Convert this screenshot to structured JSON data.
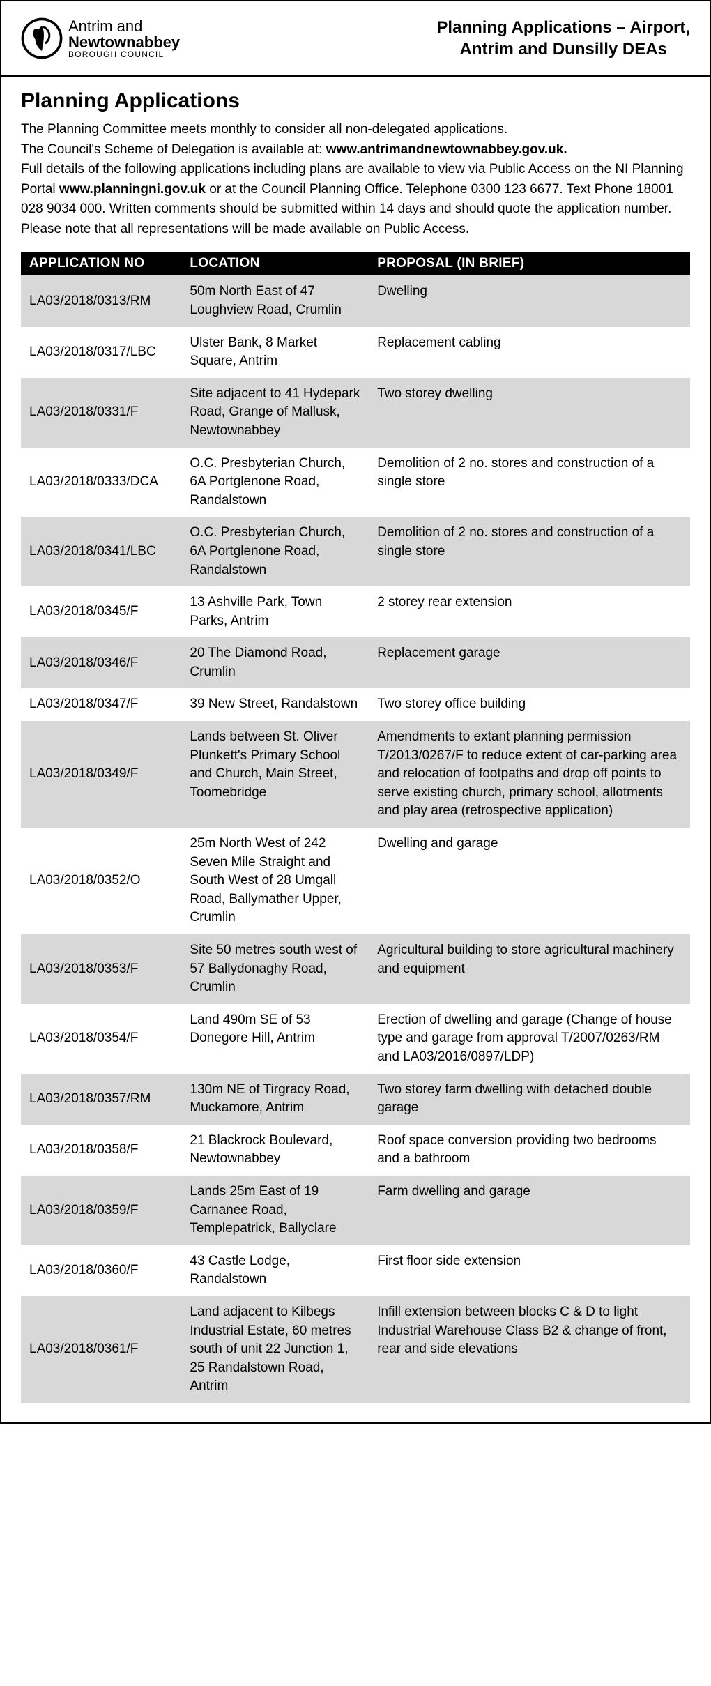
{
  "header": {
    "logo_line1": "Antrim and",
    "logo_line2": "Newtownabbey",
    "logo_line3": "BOROUGH COUNCIL",
    "title_line1": "Planning Applications – Airport,",
    "title_line2": "Antrim and Dunsilly DEAs"
  },
  "section_title": "Planning Applications",
  "intro": {
    "p1": "The Planning Committee meets monthly to consider all non-delegated applications.",
    "p2a": "The Council's Scheme of Delegation is available at: ",
    "p2b_bold": "www.antrimandnewtownabbey.gov.uk.",
    "p3a": "Full details of the following applications including plans are available to view via Public Access on the NI Planning Portal ",
    "p3b_bold": "www.planningni.gov.uk",
    "p3c": " or at the Council Planning Office. Telephone 0300 123 6677. Text Phone 18001 028 9034 000. Written comments should be submitted within 14 days and should quote the application number. Please note that all representations will be made available on Public Access."
  },
  "table": {
    "headers": {
      "appno": "APPLICATION NO",
      "location": "LOCATION",
      "proposal": "PROPOSAL (IN BRIEF)"
    },
    "rows": [
      {
        "appno": "LA03/2018/0313/RM",
        "location": "50m North East of 47 Loughview Road, Crumlin",
        "proposal": "Dwelling"
      },
      {
        "appno": "LA03/2018/0317/LBC",
        "location": "Ulster Bank, 8 Market Square, Antrim",
        "proposal": "Replacement cabling"
      },
      {
        "appno": "LA03/2018/0331/F",
        "location": "Site adjacent to 41 Hydepark Road, Grange of Mallusk, Newtownabbey",
        "proposal": "Two storey dwelling"
      },
      {
        "appno": "LA03/2018/0333/DCA",
        "location": "O.C. Presbyterian Church, 6A Portglenone Road, Randalstown",
        "proposal": "Demolition of 2 no. stores and construction of a single store"
      },
      {
        "appno": "LA03/2018/0341/LBC",
        "location": "O.C. Presbyterian Church, 6A Portglenone Road, Randalstown",
        "proposal": "Demolition of 2 no. stores and construction of a single store"
      },
      {
        "appno": "LA03/2018/0345/F",
        "location": "13 Ashville Park, Town Parks, Antrim",
        "proposal": "2 storey rear extension"
      },
      {
        "appno": "LA03/2018/0346/F",
        "location": "20 The Diamond Road, Crumlin",
        "proposal": "Replacement garage"
      },
      {
        "appno": "LA03/2018/0347/F",
        "location": "39 New Street, Randalstown",
        "proposal": "Two storey office building"
      },
      {
        "appno": "LA03/2018/0349/F",
        "location": "Lands between St. Oliver Plunkett's Primary School and Church, Main Street, Toomebridge",
        "proposal": "Amendments to extant planning permission T/2013/0267/F to reduce extent of car-parking area and relocation of footpaths and drop off points to serve existing church, primary school, allotments and play area (retrospective application)"
      },
      {
        "appno": "LA03/2018/0352/O",
        "location": "25m North West of 242 Seven Mile Straight and South West of 28 Umgall Road, Ballymather Upper, Crumlin",
        "proposal": "Dwelling and garage"
      },
      {
        "appno": "LA03/2018/0353/F",
        "location": "Site 50 metres south west of 57 Ballydonaghy Road, Crumlin",
        "proposal": "Agricultural building to store agricultural machinery and equipment"
      },
      {
        "appno": "LA03/2018/0354/F",
        "location": "Land 490m SE of 53 Donegore Hill, Antrim",
        "proposal": "Erection of dwelling and garage (Change of house type and garage from approval T/2007/0263/RM and LA03/2016/0897/LDP)"
      },
      {
        "appno": "LA03/2018/0357/RM",
        "location": "130m NE of Tirgracy Road, Muckamore, Antrim",
        "proposal": "Two storey farm dwelling with detached double garage"
      },
      {
        "appno": "LA03/2018/0358/F",
        "location": "21 Blackrock Boulevard, Newtownabbey",
        "proposal": "Roof space conversion providing two bedrooms and a bathroom"
      },
      {
        "appno": "LA03/2018/0359/F",
        "location": "Lands 25m East of 19 Carnanee Road, Templepatrick, Ballyclare",
        "proposal": "Farm dwelling and garage"
      },
      {
        "appno": "LA03/2018/0360/F",
        "location": "43 Castle Lodge, Randalstown",
        "proposal": "First floor side extension"
      },
      {
        "appno": "LA03/2018/0361/F",
        "location": "Land adjacent to Kilbegs Industrial Estate, 60 metres south of unit 22 Junction 1, 25 Randalstown Road, Antrim",
        "proposal": "Infill extension between blocks C & D to light Industrial Warehouse Class B2 & change of front, rear and side elevations"
      }
    ],
    "shade_color": "#d8d8d8",
    "plain_color": "#ffffff",
    "header_bg": "#000000",
    "header_fg": "#ffffff"
  }
}
